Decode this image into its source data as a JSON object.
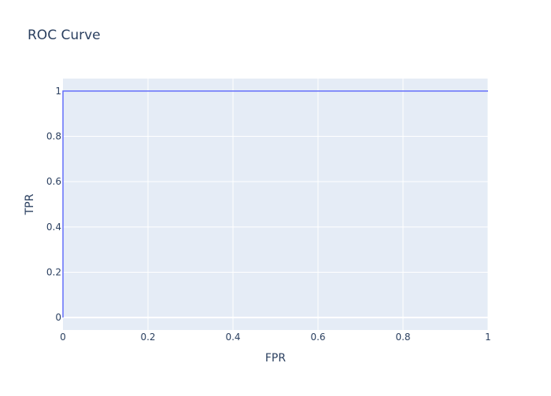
{
  "chart_data": {
    "type": "line",
    "title": "ROC Curve",
    "xlabel": "FPR",
    "ylabel": "TPR",
    "xlim": [
      0,
      1
    ],
    "ylim": [
      -0.055,
      1.055
    ],
    "xticks": [
      0,
      0.2,
      0.4,
      0.6,
      0.8,
      1
    ],
    "yticks": [
      0,
      0.2,
      0.4,
      0.6,
      0.8,
      1
    ],
    "xtick_labels": [
      "0",
      "0.2",
      "0.4",
      "0.6",
      "0.8",
      "1"
    ],
    "ytick_labels": [
      "0",
      "0.2",
      "0.4",
      "0.6",
      "0.8",
      "1"
    ],
    "grid": true,
    "legend": "none",
    "series": [
      {
        "x": [
          0,
          0,
          1
        ],
        "y": [
          0,
          1,
          1
        ],
        "color": "#636efa"
      }
    ],
    "colors": {
      "plot_background": "#e5ecf6",
      "grid": "#ffffff",
      "text": "#2a3f5f"
    }
  }
}
